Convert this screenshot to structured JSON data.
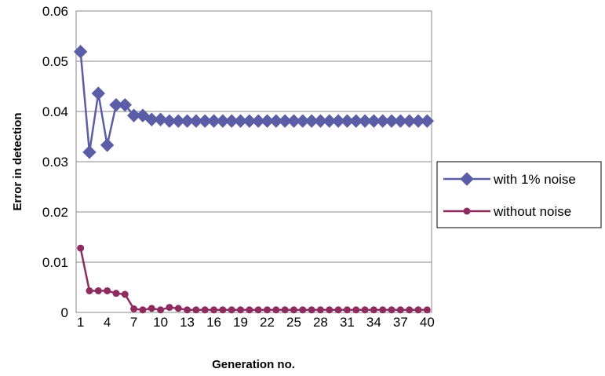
{
  "chart_data": {
    "type": "line",
    "title": "",
    "xlabel": "Generation no.",
    "ylabel": "Error in detection",
    "ylim": [
      0,
      0.06
    ],
    "yticks": [
      "0",
      "0.01",
      "0.02",
      "0.03",
      "0.04",
      "0.05",
      "0.06"
    ],
    "xticks": [
      "1",
      "4",
      "7",
      "10",
      "13",
      "16",
      "19",
      "22",
      "25",
      "28",
      "31",
      "34",
      "37",
      "40"
    ],
    "x": [
      1,
      2,
      3,
      4,
      5,
      6,
      7,
      8,
      9,
      10,
      11,
      12,
      13,
      14,
      15,
      16,
      17,
      18,
      19,
      20,
      21,
      22,
      23,
      24,
      25,
      26,
      27,
      28,
      29,
      30,
      31,
      32,
      33,
      34,
      35,
      36,
      37,
      38,
      39,
      40
    ],
    "grid": "horizontal",
    "legend_position": "right",
    "series": [
      {
        "name": "with 1%  noise",
        "color": "#5b5ea6",
        "marker": "diamond",
        "values": [
          0.0519,
          0.0319,
          0.0436,
          0.0333,
          0.0413,
          0.0413,
          0.0392,
          0.0392,
          0.0384,
          0.0384,
          0.0381,
          0.0381,
          0.0381,
          0.0381,
          0.0381,
          0.0381,
          0.0381,
          0.0381,
          0.0381,
          0.0381,
          0.0381,
          0.0381,
          0.0381,
          0.0381,
          0.0381,
          0.0381,
          0.0381,
          0.0381,
          0.0381,
          0.0381,
          0.0381,
          0.0381,
          0.0381,
          0.0381,
          0.0381,
          0.0381,
          0.0381,
          0.0381,
          0.0381,
          0.0381
        ]
      },
      {
        "name": "without noise",
        "color": "#8e2c60",
        "marker": "circle",
        "values": [
          0.0128,
          0.0043,
          0.0043,
          0.0043,
          0.0038,
          0.0036,
          0.0007,
          0.0005,
          0.0008,
          0.0005,
          0.001,
          0.0008,
          0.0005,
          0.0005,
          0.0005,
          0.0005,
          0.0005,
          0.0005,
          0.0005,
          0.0005,
          0.0005,
          0.0005,
          0.0005,
          0.0005,
          0.0005,
          0.0005,
          0.0005,
          0.0005,
          0.0005,
          0.0005,
          0.0005,
          0.0005,
          0.0005,
          0.0005,
          0.0005,
          0.0005,
          0.0005,
          0.0005,
          0.0005,
          0.0005
        ]
      }
    ]
  }
}
